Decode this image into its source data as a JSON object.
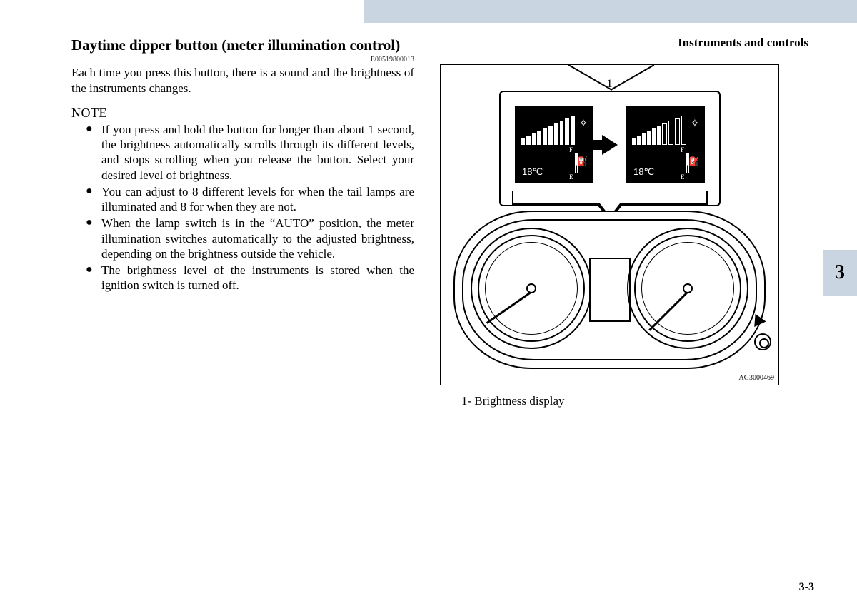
{
  "chapter_label": "Instruments and controls",
  "section_title": "Daytime dipper button (meter illumination control)",
  "doc_code": "E00519800013",
  "intro": "Each time you press this button, there is a sound and the brightness of the instruments changes.",
  "note_head": "NOTE",
  "notes": [
    "If you press and hold the button for longer than about 1 second, the brightness automatically scrolls through its different levels, and stops scrolling when you release the button. Select your desired level of brightness.",
    "You can adjust to 8 different levels for when the tail lamps are illuminated and 8 for when they are not.",
    "When the lamp switch is in the “AUTO” position, the meter illumination switches automatically to the adjusted brightness, depending on the brightness outside the vehicle.",
    "The brightness level of the instruments is stored when the ignition switch is turned off."
  ],
  "figure": {
    "callout_number": "1",
    "caption": "1-  Brightness display",
    "figure_id": "AG3000469",
    "left_screen": {
      "bar_count": 10,
      "filled": 10,
      "temp": "18℃"
    },
    "right_screen": {
      "bar_count": 10,
      "filled": 6,
      "temp": "18℃"
    },
    "fuel_labels": {
      "full": "F",
      "empty": "E"
    },
    "gauge_left_needle_deg": -125,
    "gauge_right_needle_deg": -135
  },
  "chapter_number": "3",
  "page_number": "3-3",
  "colors": {
    "tab_bg": "#c9d5e0",
    "text": "#000000",
    "bg": "#ffffff"
  }
}
